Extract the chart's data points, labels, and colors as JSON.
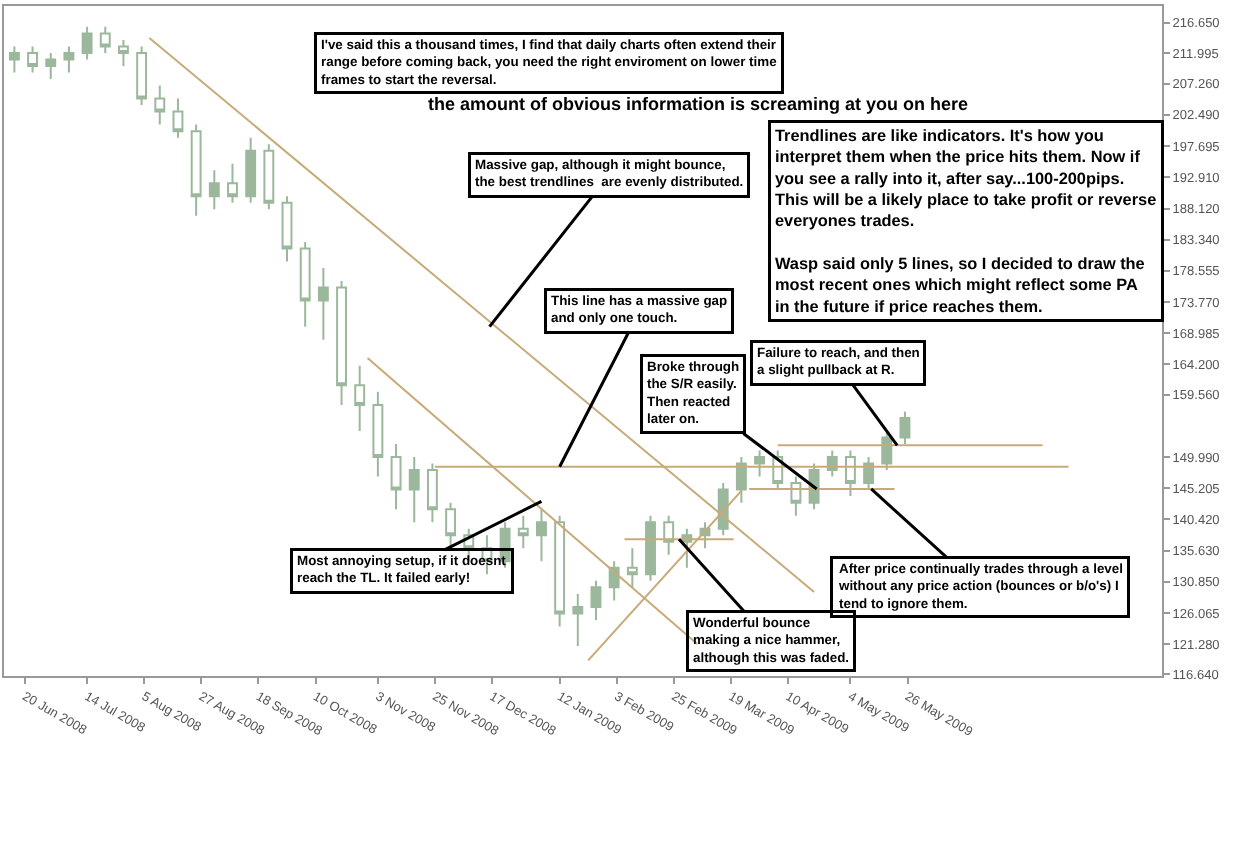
{
  "chart_data": {
    "type": "candlestick",
    "color": "#9cb89c",
    "x": [
      "2008-06-16",
      "2008-06-23",
      "2008-06-30",
      "2008-07-07",
      "2008-07-14",
      "2008-07-21",
      "2008-07-28",
      "2008-08-04",
      "2008-08-11",
      "2008-08-18",
      "2008-08-25",
      "2008-09-01",
      "2008-09-08",
      "2008-09-15",
      "2008-09-22",
      "2008-09-29",
      "2008-10-06",
      "2008-10-13",
      "2008-10-20",
      "2008-10-27",
      "2008-11-03",
      "2008-11-10",
      "2008-11-17",
      "2008-11-24",
      "2008-12-01",
      "2008-12-08",
      "2008-12-15",
      "2008-12-22",
      "2008-12-29",
      "2009-01-05",
      "2009-01-12",
      "2009-01-19",
      "2009-01-26",
      "2009-02-02",
      "2009-02-09",
      "2009-02-16",
      "2009-02-23",
      "2009-03-02",
      "2009-03-09",
      "2009-03-16",
      "2009-03-23",
      "2009-03-30",
      "2009-04-06",
      "2009-04-13",
      "2009-04-20",
      "2009-04-27",
      "2009-05-04",
      "2009-05-11",
      "2009-05-18",
      "2009-05-25"
    ],
    "ohlc": [
      [
        211,
        213,
        209,
        212
      ],
      [
        212,
        213,
        209,
        210
      ],
      [
        210,
        212,
        208,
        211
      ],
      [
        211,
        213,
        209,
        212
      ],
      [
        212,
        216,
        211,
        215
      ],
      [
        215,
        216,
        212,
        213
      ],
      [
        213,
        214,
        210,
        212
      ],
      [
        212,
        213,
        204,
        205
      ],
      [
        205,
        207,
        201,
        203
      ],
      [
        203,
        205,
        199,
        200
      ],
      [
        200,
        201,
        187,
        190
      ],
      [
        190,
        194,
        188,
        192
      ],
      [
        192,
        195,
        189,
        190
      ],
      [
        190,
        199,
        189,
        197
      ],
      [
        197,
        198,
        188,
        189
      ],
      [
        189,
        190,
        180,
        182
      ],
      [
        182,
        183,
        170,
        174
      ],
      [
        174,
        179,
        168,
        176
      ],
      [
        176,
        177,
        158,
        161
      ],
      [
        161,
        164,
        154,
        158
      ],
      [
        158,
        160,
        147,
        150
      ],
      [
        150,
        152,
        142,
        145
      ],
      [
        145,
        150,
        140,
        148
      ],
      [
        148,
        149,
        140,
        142
      ],
      [
        142,
        143,
        136,
        138
      ],
      [
        138,
        139,
        134,
        136
      ],
      [
        136,
        138,
        132,
        134
      ],
      [
        134,
        140,
        133,
        139
      ],
      [
        139,
        141,
        136,
        138
      ],
      [
        138,
        142,
        134,
        140
      ],
      [
        140,
        141,
        124,
        126
      ],
      [
        126,
        129,
        121,
        127
      ],
      [
        127,
        131,
        125,
        130
      ],
      [
        130,
        134,
        128,
        133
      ],
      [
        133,
        136,
        130,
        132
      ],
      [
        132,
        141,
        131,
        140
      ],
      [
        140,
        141,
        135,
        137
      ],
      [
        137,
        139,
        133,
        138
      ],
      [
        138,
        140,
        136,
        139
      ],
      [
        139,
        146,
        138,
        145
      ],
      [
        145,
        150,
        143,
        149
      ],
      [
        149,
        151,
        147,
        150
      ],
      [
        150,
        151,
        145,
        146
      ],
      [
        146,
        147,
        141,
        143
      ],
      [
        143,
        149,
        142,
        148
      ],
      [
        148,
        151,
        147,
        150
      ],
      [
        150,
        151,
        144,
        146
      ],
      [
        146,
        150,
        145,
        149
      ],
      [
        149,
        154,
        148,
        153
      ],
      [
        153,
        157,
        152,
        156
      ]
    ],
    "series": [
      {
        "type": "line",
        "color": "#c8aa78",
        "x": [
          "2008-08-07",
          "2009-04-20"
        ],
        "values": [
          214.3,
          129.3
        ]
      },
      {
        "type": "line",
        "color": "#c8aa78",
        "x": [
          "2008-10-30",
          "2009-03-06"
        ],
        "values": [
          165.2,
          121.3
        ]
      },
      {
        "type": "line",
        "color": "#c8aa78",
        "x": [
          "2008-11-25",
          "2009-07-27"
        ],
        "values": [
          148.5,
          148.5
        ]
      },
      {
        "type": "line",
        "color": "#c8aa78",
        "x": [
          "2009-04-06",
          "2009-07-17"
        ],
        "values": [
          151.8,
          151.8
        ]
      },
      {
        "type": "line",
        "color": "#c8aa78",
        "x": [
          "2009-03-26",
          "2009-05-21"
        ],
        "values": [
          145.1,
          145.1
        ]
      },
      {
        "type": "line",
        "color": "#c8aa78",
        "x": [
          "2009-02-06",
          "2009-03-20"
        ],
        "values": [
          137.4,
          137.4
        ]
      },
      {
        "type": "line",
        "color": "#c8aa78",
        "x": [
          "2009-01-23",
          "2009-03-23"
        ],
        "values": [
          118.8,
          144.8
        ]
      }
    ],
    "xlim": [
      "2008-06-12",
      "2009-09-01"
    ],
    "xticks": [
      {
        "value": "2008-06-20",
        "label": "20 Jun 2008"
      },
      {
        "value": "2008-07-14",
        "label": "14 Jul 2008"
      },
      {
        "value": "2008-08-05",
        "label": "5 Aug 2008"
      },
      {
        "value": "2008-08-27",
        "label": "27 Aug 2008"
      },
      {
        "value": "2008-09-18",
        "label": "18 Sep 2008"
      },
      {
        "value": "2008-10-10",
        "label": "10 Oct 2008"
      },
      {
        "value": "2008-11-03",
        "label": "3 Nov 2008"
      },
      {
        "value": "2008-11-25",
        "label": "25 Nov 2008"
      },
      {
        "value": "2008-12-17",
        "label": "17 Dec 2008"
      },
      {
        "value": "2009-01-12",
        "label": "12 Jan 2009"
      },
      {
        "value": "2009-02-03",
        "label": "3 Feb 2009"
      },
      {
        "value": "2009-02-25",
        "label": "25 Feb 2009"
      },
      {
        "value": "2009-03-19",
        "label": "19 Mar 2009"
      },
      {
        "value": "2009-04-10",
        "label": "10 Apr 2009"
      },
      {
        "value": "2009-05-04",
        "label": "4 May 2009"
      },
      {
        "value": "2009-05-26",
        "label": "26 May 2009"
      }
    ],
    "ylim": [
      116.4,
      219.2
    ],
    "yticks": [
      {
        "value": 116.64,
        "label": "116.640"
      },
      {
        "value": 121.28,
        "label": "121.280"
      },
      {
        "value": 126.065,
        "label": "126.065"
      },
      {
        "value": 130.85,
        "label": "130.850"
      },
      {
        "value": 135.63,
        "label": "135.630"
      },
      {
        "value": 140.42,
        "label": "140.420"
      },
      {
        "value": 145.205,
        "label": "145.205"
      },
      {
        "value": 149.99,
        "label": "149.990"
      },
      {
        "value": 159.56,
        "label": "159.560"
      },
      {
        "value": 164.2,
        "label": "164.200"
      },
      {
        "value": 168.985,
        "label": "168.985"
      },
      {
        "value": 173.77,
        "label": "173.770"
      },
      {
        "value": 178.555,
        "label": "178.555"
      },
      {
        "value": 183.34,
        "label": "183.340"
      },
      {
        "value": 188.12,
        "label": "188.120"
      },
      {
        "value": 192.91,
        "label": "192.910"
      },
      {
        "value": 197.695,
        "label": "197.695"
      },
      {
        "value": 202.49,
        "label": "202.490"
      },
      {
        "value": 207.26,
        "label": "207.260"
      },
      {
        "value": 211.995,
        "label": "211.995"
      },
      {
        "value": 216.65,
        "label": "216.650"
      }
    ],
    "annotations": [
      "I've said this a thousand times, I find that daily charts often extend their\nrange before coming back, you need the right enviroment on lower time\nframes to start the reversal.",
      "the amount of obvious information is screaming at you on here",
      "Trendlines are like indicators. It's how you\ninterpret them when the price hits them. Now if\nyou see a rally into it, after say...100-200pips.\nThis will be a likely place to take profit or reverse\neveryones trades.\n\nWasp said only 5 lines, so I decided to draw the\nmost recent ones which might reflect some PA\nin the future if price reaches them.",
      {
        "text": "Massive gap, although it might bounce,\nthe best trendlines  are evenly distributed.",
        "x": "2008-12-16",
        "y": 170
      },
      {
        "text": "This line has a massive gap\nand only one touch.",
        "x": "2009-01-12",
        "y": 148.5
      },
      {
        "text": "Broke through\nthe S/R easily.\nThen reacted\nlater on.",
        "x": "2009-04-21",
        "y": 145.1
      },
      {
        "text": "Failure to reach, and then\na slight pullback at R.",
        "x": "2009-05-22",
        "y": 151.8
      },
      {
        "text": "Most annoying setup, if it doesnt\nreach the TL. It failed early!",
        "x": "2009-01-05",
        "y": 143.2
      },
      {
        "text": "Wonderful bounce\nmaking a nice hammer,\nalthough this was faded.",
        "x": "2009-02-27",
        "y": 137.4
      },
      {
        "text": "After price continually trades through a level\nwithout any price action (bounces or b/o's) I\ntend to ignore them.",
        "x": "2009-05-12",
        "y": 145.1
      }
    ]
  }
}
